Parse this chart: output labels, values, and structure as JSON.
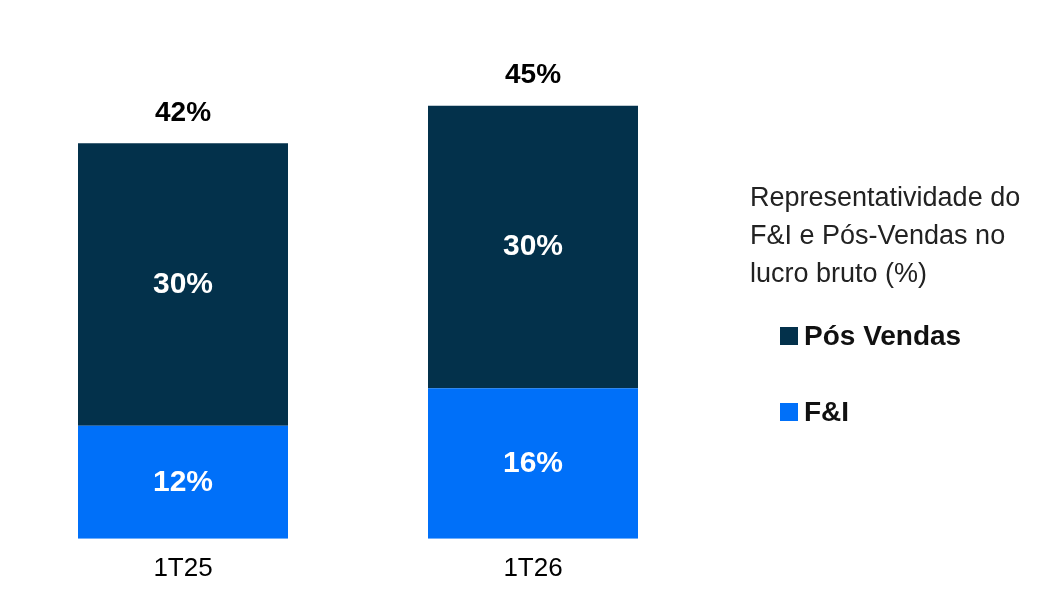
{
  "chart_data": {
    "type": "bar",
    "stacked": true,
    "categories": [
      "1T25",
      "1T26"
    ],
    "series": [
      {
        "name": "F&I",
        "color": "#0070f9",
        "values": [
          12,
          16
        ],
        "value_labels": [
          "12%",
          "16%"
        ]
      },
      {
        "name": "Pós Vendas",
        "color": "#03314b",
        "values": [
          30,
          30
        ],
        "value_labels": [
          "30%",
          "30%"
        ]
      }
    ],
    "totals": [
      "42%",
      "45%"
    ],
    "legend": "right",
    "legend_title": "Representatividade do F&I e Pós-Vendas no lucro bruto (%)",
    "grid": false
  }
}
